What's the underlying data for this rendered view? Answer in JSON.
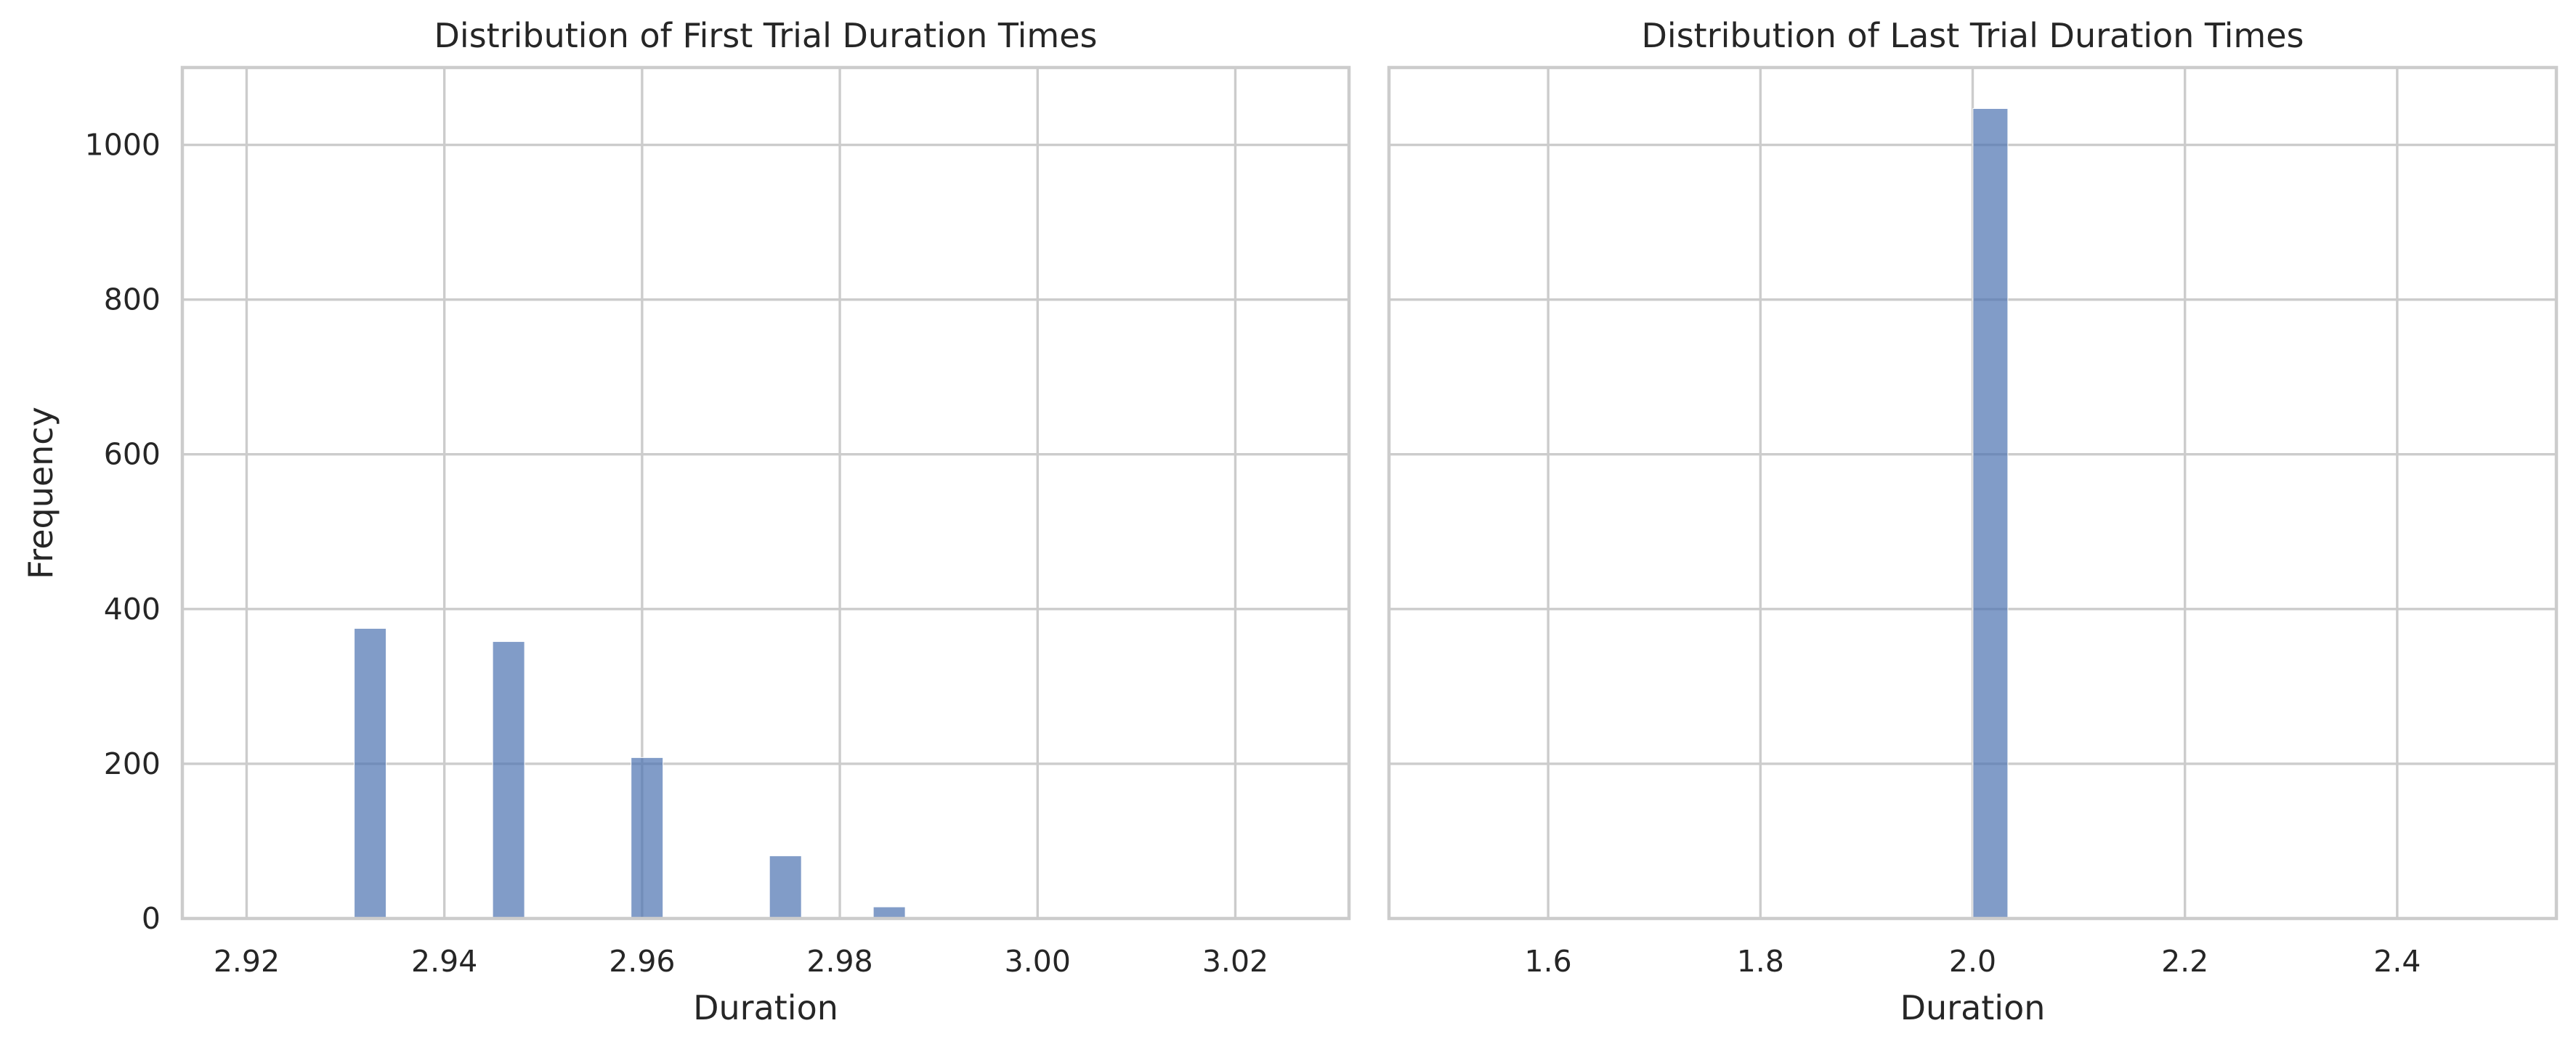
{
  "chart_data": [
    {
      "type": "bar",
      "title": "Distribution of First Trial Duration Times",
      "xlabel": "Duration",
      "ylabel": "Frequency",
      "xlim": [
        2.9135,
        3.0315
      ],
      "ylim": [
        0,
        1100
      ],
      "xticks": [
        2.92,
        2.94,
        2.96,
        2.98,
        3.0,
        3.02
      ],
      "xtick_labels": [
        "2.92",
        "2.94",
        "2.96",
        "2.98",
        "3.00",
        "3.02"
      ],
      "yticks": [
        0,
        200,
        400,
        600,
        800,
        1000
      ],
      "ytick_labels": [
        "0",
        "200",
        "400",
        "600",
        "800",
        "1000"
      ],
      "grid": true,
      "color": "#4c72b0",
      "bars": [
        {
          "x": 2.9325,
          "value": 375
        },
        {
          "x": 2.9465,
          "value": 358
        },
        {
          "x": 2.9605,
          "value": 208
        },
        {
          "x": 2.9745,
          "value": 81
        },
        {
          "x": 2.985,
          "value": 15
        }
      ]
    },
    {
      "type": "bar",
      "title": "Distribution of Last Trial Duration Times",
      "xlabel": "Duration",
      "ylabel": "",
      "xlim": [
        1.45,
        2.55
      ],
      "ylim": [
        0,
        1100
      ],
      "xticks": [
        1.6,
        1.8,
        2.0,
        2.2,
        2.4
      ],
      "xtick_labels": [
        "1.6",
        "1.8",
        "2.0",
        "2.2",
        "2.4"
      ],
      "yticks": [
        0,
        200,
        400,
        600,
        800,
        1000
      ],
      "ytick_labels": [],
      "grid": true,
      "color": "#4c72b0",
      "bars": [
        {
          "x": 2.0167,
          "value": 1047
        }
      ]
    }
  ]
}
